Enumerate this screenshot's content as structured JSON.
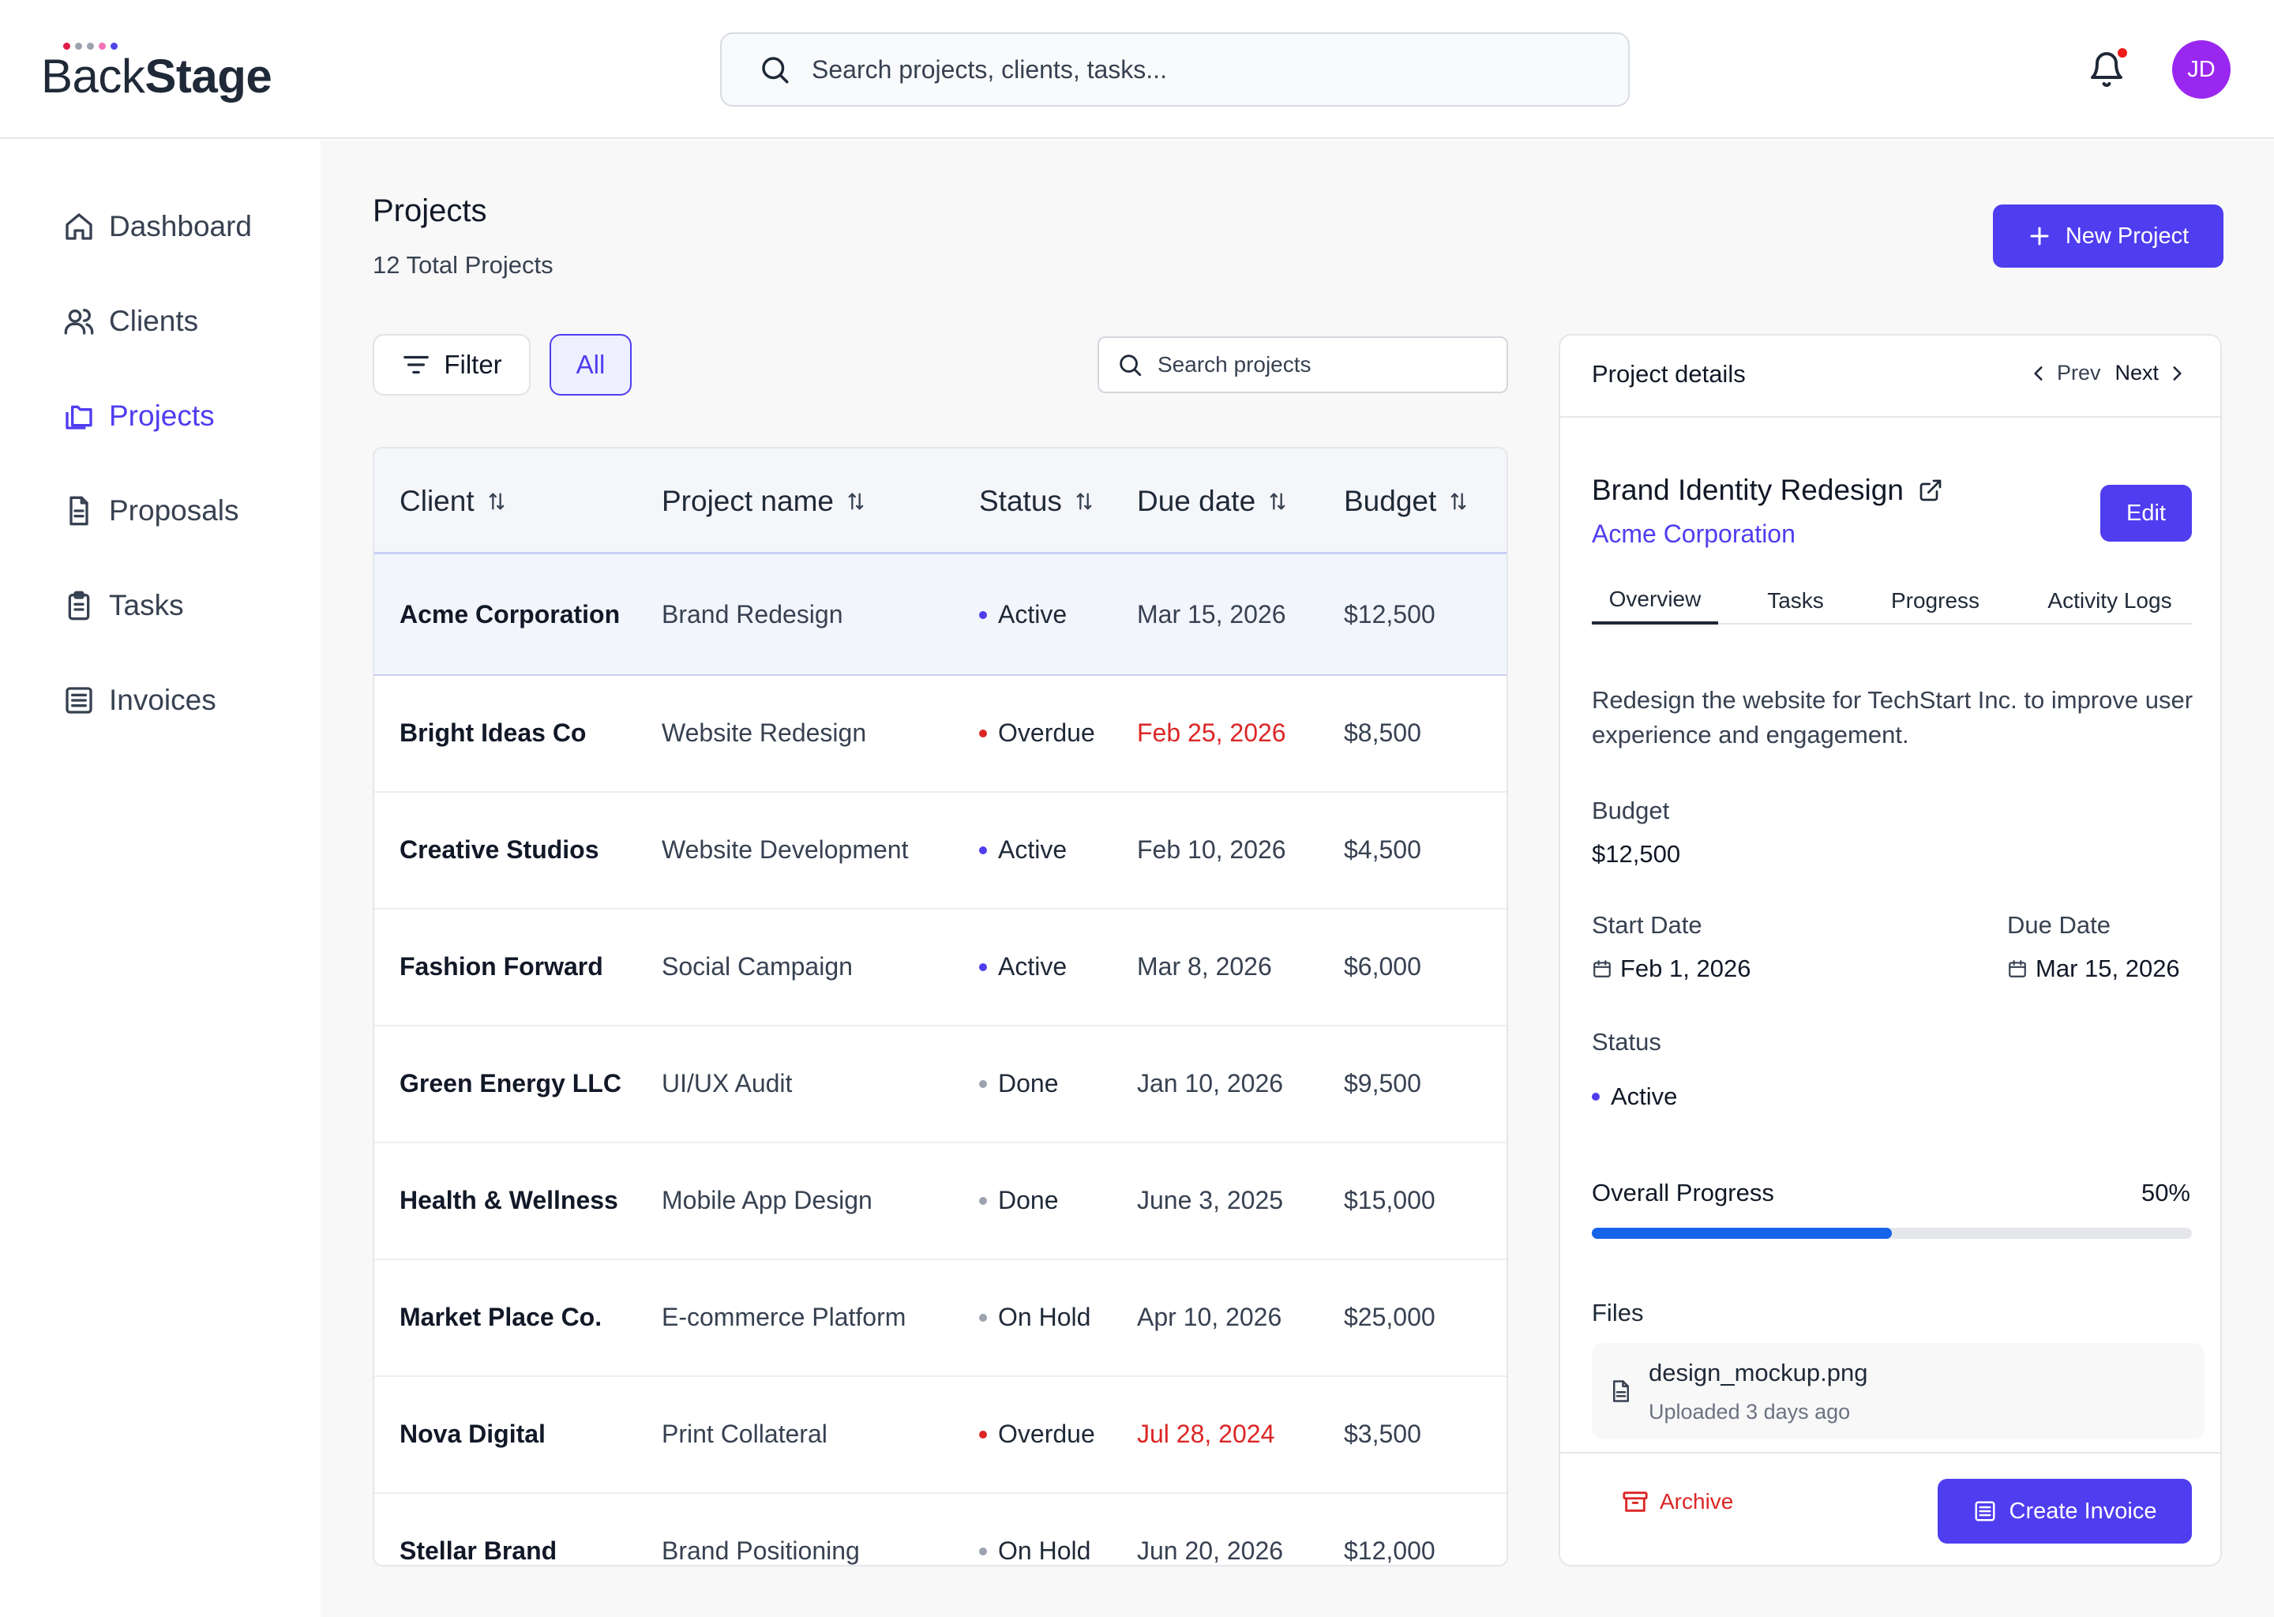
{
  "app": {
    "logo_text_light": "Back",
    "logo_text_bold": "Stage"
  },
  "header": {
    "search_placeholder": "Search projects, clients, tasks...",
    "avatar_initials": "JD"
  },
  "sidebar": {
    "items": [
      {
        "label": "Dashboard",
        "icon": "home-icon"
      },
      {
        "label": "Clients",
        "icon": "users-icon"
      },
      {
        "label": "Projects",
        "icon": "folders-icon",
        "active": true
      },
      {
        "label": "Proposals",
        "icon": "document-icon"
      },
      {
        "label": "Tasks",
        "icon": "clipboard-icon"
      },
      {
        "label": "Invoices",
        "icon": "list-icon"
      }
    ]
  },
  "page": {
    "title": "Projects",
    "subtitle": "12 Total Projects",
    "new_button": "New Project",
    "filter_button": "Filter",
    "all_button": "All",
    "search_placeholder": "Search projects"
  },
  "table": {
    "columns": [
      "Client",
      "Project name",
      "Status",
      "Due date",
      "Budget"
    ],
    "rows": [
      {
        "client": "Acme Corporation",
        "project": "Brand Redesign",
        "status": "Active",
        "due": "Mar 15, 2026",
        "budget": "$12,500"
      },
      {
        "client": "Bright Ideas Co",
        "project": "Website Redesign",
        "status": "Overdue",
        "due": "Feb 25, 2026",
        "budget": "$8,500"
      },
      {
        "client": "Creative Studios",
        "project": "Website Development",
        "status": "Active",
        "due": "Feb 10, 2026",
        "budget": "$4,500"
      },
      {
        "client": "Fashion Forward",
        "project": "Social  Campaign",
        "status": "Active",
        "due": "Mar 8, 2026",
        "budget": "$6,000"
      },
      {
        "client": "Green Energy LLC",
        "project": "UI/UX Audit",
        "status": "Done",
        "due": "Jan 10, 2026",
        "budget": "$9,500"
      },
      {
        "client": "Health & Wellness",
        "project": "Mobile App Design",
        "status": "Done",
        "due": "June 3, 2025",
        "budget": "$15,000"
      },
      {
        "client": "Market Place Co.",
        "project": "E-commerce Platform",
        "status": "On Hold",
        "due": "Apr 10, 2026",
        "budget": "$25,000"
      },
      {
        "client": "Nova Digital",
        "project": "Print Collateral",
        "status": "Overdue",
        "due": "Jul 28, 2024",
        "budget": "$3,500"
      },
      {
        "client": "Stellar Brand",
        "project": "Brand Positioning",
        "status": "On Hold",
        "due": "Jun 20, 2026",
        "budget": "$12,000"
      }
    ]
  },
  "status_colors": {
    "Active": "#4f3df0",
    "Overdue": "#dc2626",
    "Done": "#9ca3af",
    "On Hold": "#9ca3af"
  },
  "details": {
    "header_title": "Project details",
    "prev_label": "Prev",
    "next_label": "Next",
    "project_title": "Brand Identity Redesign",
    "client": "Acme Corporation",
    "edit_label": "Edit",
    "tabs": [
      "Overview",
      "Tasks",
      "Progress",
      "Activity Logs"
    ],
    "description": "Redesign the website for TechStart Inc. to improve user experience and engagement.",
    "budget_label": "Budget",
    "budget_value": "$12,500",
    "start_label": "Start Date",
    "start_value": "Feb 1, 2026",
    "due_label": "Due Date",
    "due_value": "Mar 15, 2026",
    "status_label": "Status",
    "status_value": "Active",
    "progress_label": "Overall Progress",
    "progress_text": "50%",
    "progress_fraction": 0.5,
    "files_label": "Files",
    "file_name": "design_mockup.png",
    "file_meta": "Uploaded 3 days ago",
    "archive_label": "Archive",
    "invoice_label": "Create Invoice"
  }
}
